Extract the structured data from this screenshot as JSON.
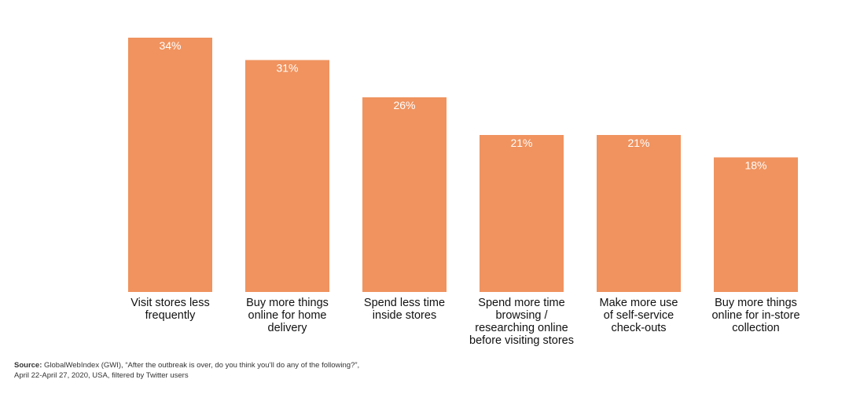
{
  "chart_data": {
    "type": "bar",
    "title": "",
    "xlabel": "",
    "ylabel": "",
    "ylim": [
      0,
      34
    ],
    "grid": false,
    "unit": "%",
    "bar_color": "#F0935F",
    "value_label_color": "#FFFFFF",
    "categories": [
      [
        "Visit stores less",
        "frequently"
      ],
      [
        "Buy more things",
        "online for home",
        "delivery"
      ],
      [
        "Spend less time",
        "inside stores"
      ],
      [
        "Spend more time",
        "browsing /",
        "researching online",
        "before visiting stores"
      ],
      [
        "Make more use",
        "of self-service",
        "check-outs"
      ],
      [
        "Buy more things",
        "online for in-store",
        "collection"
      ]
    ],
    "values": [
      34,
      31,
      26,
      21,
      21,
      18
    ],
    "value_labels": [
      "34%",
      "31%",
      "26%",
      "21%",
      "21%",
      "18%"
    ]
  },
  "source": {
    "label": "Source:",
    "line1": " GlobalWebIndex (GWI), “After the outbreak is over, do you think you’ll do any of the following?”,",
    "line2": "April 22-April 27, 2020, USA, filtered by Twitter users"
  }
}
